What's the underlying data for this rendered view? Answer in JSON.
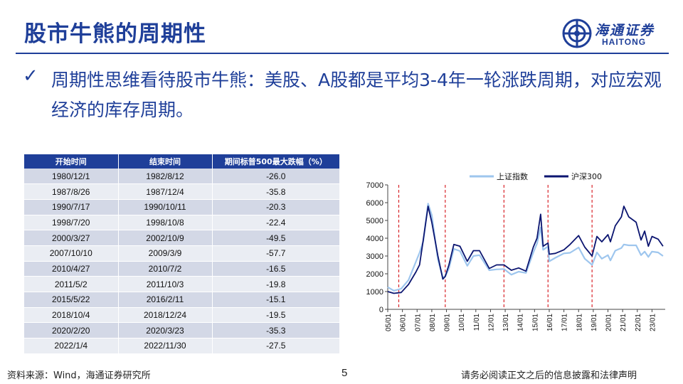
{
  "title": "股市牛熊的周期性",
  "logo": {
    "cn": "海通证券",
    "en": "HAITONG"
  },
  "bullet": "周期性思维看待股市牛熊：美股、A股都是平均3-4年一轮涨跌周期，对应宏观经济的库存周期。",
  "table": {
    "headers": [
      "开始时间",
      "结束时间",
      "期间标普500最大跌幅（%）"
    ],
    "rows": [
      [
        "1980/12/1",
        "1982/8/12",
        "-26.0"
      ],
      [
        "1987/8/26",
        "1987/12/4",
        "-35.8"
      ],
      [
        "1990/7/17",
        "1990/10/11",
        "-20.3"
      ],
      [
        "1998/7/20",
        "1998/10/8",
        "-22.4"
      ],
      [
        "2000/3/27",
        "2002/10/9",
        "-49.5"
      ],
      [
        "2007/10/10",
        "2009/3/9",
        "-57.7"
      ],
      [
        "2010/4/27",
        "2010/7/2",
        "-16.5"
      ],
      [
        "2011/5/2",
        "2011/10/3",
        "-19.8"
      ],
      [
        "2015/5/22",
        "2016/2/11",
        "-15.1"
      ],
      [
        "2018/10/4",
        "2018/12/24",
        "-19.5"
      ],
      [
        "2020/2/20",
        "2020/3/23",
        "-35.3"
      ],
      [
        "2022/1/4",
        "2022/11/30",
        "-27.5"
      ]
    ]
  },
  "chart_data": {
    "type": "line",
    "x_tick_labels": [
      "05/01",
      "06/01",
      "07/01",
      "08/01",
      "09/01",
      "10/01",
      "11/01",
      "12/01",
      "13/01",
      "14/01",
      "15/01",
      "16/01",
      "17/01",
      "18/01",
      "19/01",
      "20/01",
      "21/01",
      "22/01",
      "23/01"
    ],
    "ylim": [
      0,
      7000
    ],
    "y_ticks": [
      0,
      1000,
      2000,
      3000,
      4000,
      5000,
      6000,
      7000
    ],
    "legend_position": "top",
    "grid": false,
    "cycle_markers": [
      "2005/10",
      "2008/12",
      "2012/12",
      "2015/12",
      "2018/12"
    ],
    "series": [
      {
        "name": "上证指数",
        "color": "#9ec6ee",
        "x": [
          "2005/01",
          "2005/06",
          "2005/12",
          "2006/06",
          "2006/12",
          "2007/03",
          "2007/06",
          "2007/10",
          "2008/01",
          "2008/06",
          "2008/10",
          "2008/12",
          "2009/03",
          "2009/07",
          "2009/12",
          "2010/06",
          "2010/11",
          "2011/04",
          "2011/12",
          "2012/06",
          "2012/12",
          "2013/06",
          "2013/12",
          "2014/06",
          "2014/12",
          "2015/03",
          "2015/06",
          "2015/08",
          "2015/12",
          "2016/01",
          "2016/06",
          "2017/01",
          "2017/06",
          "2018/01",
          "2018/06",
          "2018/12",
          "2019/04",
          "2019/08",
          "2020/01",
          "2020/03",
          "2020/07",
          "2020/12",
          "2021/02",
          "2021/06",
          "2021/12",
          "2022/04",
          "2022/07",
          "2022/10",
          "2023/01",
          "2023/06",
          "2023/10"
        ],
        "values": [
          1250,
          1050,
          1160,
          1650,
          2680,
          3180,
          3820,
          5950,
          5300,
          2800,
          1800,
          1850,
          2300,
          3400,
          3280,
          2450,
          3000,
          3050,
          2200,
          2250,
          2270,
          1950,
          2120,
          2050,
          3200,
          3700,
          4600,
          3350,
          3540,
          2700,
          2900,
          3150,
          3180,
          3480,
          2850,
          2500,
          3200,
          2850,
          3050,
          2750,
          3300,
          3450,
          3650,
          3600,
          3600,
          3050,
          3250,
          2950,
          3250,
          3200,
          3000
        ]
      },
      {
        "name": "沪深300",
        "color": "#0b1570",
        "x": [
          "2005/01",
          "2005/06",
          "2005/12",
          "2006/06",
          "2006/12",
          "2007/03",
          "2007/06",
          "2007/10",
          "2008/01",
          "2008/06",
          "2008/10",
          "2008/12",
          "2009/03",
          "2009/07",
          "2009/12",
          "2010/06",
          "2010/11",
          "2011/04",
          "2011/12",
          "2012/06",
          "2012/12",
          "2013/06",
          "2013/12",
          "2014/06",
          "2014/12",
          "2015/03",
          "2015/06",
          "2015/08",
          "2015/12",
          "2016/01",
          "2016/06",
          "2017/01",
          "2017/06",
          "2018/01",
          "2018/06",
          "2018/12",
          "2019/04",
          "2019/08",
          "2020/01",
          "2020/03",
          "2020/07",
          "2020/12",
          "2021/02",
          "2021/06",
          "2021/12",
          "2022/04",
          "2022/07",
          "2022/10",
          "2023/01",
          "2023/06",
          "2023/10"
        ],
        "values": [
          1000,
          900,
          950,
          1400,
          2100,
          2500,
          3900,
          5800,
          4900,
          3000,
          1700,
          1850,
          2500,
          3650,
          3550,
          2700,
          3300,
          3300,
          2300,
          2500,
          2500,
          2200,
          2330,
          2150,
          3500,
          4000,
          5350,
          3550,
          3730,
          3100,
          3150,
          3350,
          3650,
          4150,
          3500,
          3000,
          4100,
          3800,
          4200,
          3800,
          4700,
          5200,
          5800,
          5200,
          4900,
          3900,
          4400,
          3550,
          4100,
          3950,
          3550
        ]
      }
    ]
  },
  "footer": {
    "source": "资料来源：Wind，海通证券研究所",
    "page": "5",
    "disclaimer": "请务必阅读正文之后的信息披露和法律声明"
  }
}
